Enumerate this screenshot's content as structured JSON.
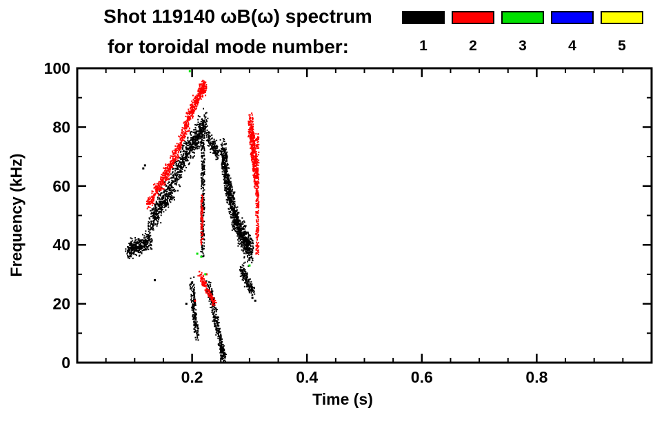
{
  "title": {
    "line1": "Shot 119140 ωB(ω) spectrum",
    "line2": "for toroidal mode number:"
  },
  "legend": {
    "entries": [
      {
        "label": "1",
        "color": "#000000"
      },
      {
        "label": "2",
        "color": "#ff0000"
      },
      {
        "label": "3",
        "color": "#00e000"
      },
      {
        "label": "4",
        "color": "#0000ff"
      },
      {
        "label": "5",
        "color": "#ffff00"
      }
    ]
  },
  "chart_data": {
    "type": "scatter",
    "title": "Shot 119140 ωB(ω) spectrum for toroidal mode number: 1 2 3 4 5",
    "xlabel": "Time (s)",
    "ylabel": "Frequency (kHz)",
    "xlim": [
      0,
      1.0
    ],
    "ylim": [
      0,
      100
    ],
    "xticks": [
      0.2,
      0.4,
      0.6,
      0.8
    ],
    "xtick_labels": [
      "0.2",
      "0.4",
      "0.6",
      "0.8"
    ],
    "yticks": [
      0,
      20,
      40,
      60,
      80,
      100
    ],
    "ytick_labels": [
      "0",
      "20",
      "40",
      "60",
      "80",
      "100"
    ],
    "x_minor": 0.05,
    "y_minor": 10,
    "grid": false,
    "legend_position": "top-right",
    "series": [
      {
        "name": "n=1",
        "mode": 1,
        "color": "#000000",
        "structures": [
          {
            "kind": "band",
            "path": [
              [
                0.088,
                38
              ],
              [
                0.1,
                40
              ],
              [
                0.112,
                40
              ],
              [
                0.125,
                42
              ]
            ],
            "width": 8,
            "n": 320,
            "tjit": 0.006
          },
          {
            "kind": "band",
            "path": [
              [
                0.125,
                47
              ],
              [
                0.14,
                52
              ],
              [
                0.155,
                57
              ],
              [
                0.17,
                63
              ],
              [
                0.185,
                70
              ],
              [
                0.2,
                75
              ],
              [
                0.21,
                78
              ],
              [
                0.222,
                82
              ]
            ],
            "width": 13,
            "n": 950,
            "tjit": 0.005
          },
          {
            "kind": "band",
            "path": [
              [
                0.225,
                78
              ],
              [
                0.235,
                74
              ],
              [
                0.243,
                71
              ]
            ],
            "width": 8,
            "n": 140,
            "tjit": 0.004
          },
          {
            "kind": "band",
            "path": [
              [
                0.217,
                36
              ],
              [
                0.218,
                80
              ]
            ],
            "width": 2,
            "n": 260,
            "tjit": 0.003
          },
          {
            "kind": "band",
            "path": [
              [
                0.252,
                73
              ],
              [
                0.258,
                65
              ],
              [
                0.265,
                57
              ],
              [
                0.272,
                50
              ],
              [
                0.282,
                45
              ],
              [
                0.292,
                41
              ],
              [
                0.302,
                38
              ]
            ],
            "width": 13,
            "n": 1000,
            "tjit": 0.005
          },
          {
            "kind": "band",
            "path": [
              [
                0.285,
                32
              ],
              [
                0.295,
                28
              ],
              [
                0.305,
                24
              ]
            ],
            "width": 6,
            "n": 170,
            "tjit": 0.004
          },
          {
            "kind": "band",
            "path": [
              [
                0.198,
                28
              ],
              [
                0.202,
                18
              ],
              [
                0.207,
                9
              ]
            ],
            "width": 5,
            "n": 170,
            "tjit": 0.004
          },
          {
            "kind": "band",
            "path": [
              [
                0.227,
                27
              ],
              [
                0.235,
                20
              ],
              [
                0.243,
                12
              ],
              [
                0.25,
                5
              ],
              [
                0.255,
                1
              ]
            ],
            "width": 6,
            "n": 330,
            "tjit": 0.004
          },
          {
            "kind": "dots",
            "pts": [
              [
                0.115,
                66
              ],
              [
                0.118,
                67
              ],
              [
                0.135,
                28
              ],
              [
                0.19,
                20
              ],
              [
                0.305,
                22
              ],
              [
                0.31,
                21
              ]
            ],
            "size": 3
          }
        ]
      },
      {
        "name": "n=2",
        "mode": 2,
        "color": "#ff0000",
        "structures": [
          {
            "kind": "band",
            "path": [
              [
                0.132,
                57
              ],
              [
                0.145,
                61
              ],
              [
                0.158,
                66
              ],
              [
                0.17,
                71
              ],
              [
                0.182,
                77
              ],
              [
                0.193,
                83
              ],
              [
                0.203,
                88
              ],
              [
                0.213,
                92
              ],
              [
                0.222,
                94
              ]
            ],
            "width": 7,
            "n": 700,
            "tjit": 0.004
          },
          {
            "kind": "band",
            "path": [
              [
                0.122,
                54
              ],
              [
                0.13,
                56
              ]
            ],
            "width": 4,
            "n": 50,
            "tjit": 0.004
          },
          {
            "kind": "band",
            "path": [
              [
                0.216,
                40
              ],
              [
                0.216,
                57
              ]
            ],
            "width": 1.5,
            "n": 90,
            "tjit": 0.002
          },
          {
            "kind": "band",
            "path": [
              [
                0.212,
                30
              ],
              [
                0.22,
                27
              ],
              [
                0.23,
                23
              ],
              [
                0.238,
                20
              ]
            ],
            "width": 3.5,
            "n": 120,
            "tjit": 0.003
          },
          {
            "kind": "band",
            "path": [
              [
                0.3,
                82
              ],
              [
                0.304,
                75
              ],
              [
                0.308,
                68
              ],
              [
                0.311,
                62
              ]
            ],
            "width": 11,
            "n": 430,
            "tjit": 0.004
          },
          {
            "kind": "band",
            "path": [
              [
                0.3125,
                37
              ],
              [
                0.3125,
                78
              ]
            ],
            "width": 1.5,
            "n": 200,
            "tjit": 0.0025
          },
          {
            "kind": "dots",
            "pts": [
              [
                0.205,
                21
              ],
              [
                0.225,
                30
              ]
            ],
            "size": 3
          }
        ]
      },
      {
        "name": "n=3",
        "mode": 3,
        "color": "#00e000",
        "structures": [
          {
            "kind": "dots",
            "pts": [
              [
                0.196,
                99
              ],
              [
                0.209,
                37
              ],
              [
                0.216,
                36
              ],
              [
                0.223,
                30
              ],
              [
                0.3,
                33
              ]
            ],
            "size": 3
          }
        ]
      },
      {
        "name": "n=4",
        "mode": 4,
        "color": "#0000ff",
        "structures": []
      },
      {
        "name": "n=5",
        "mode": 5,
        "color": "#ffff00",
        "structures": []
      }
    ]
  }
}
